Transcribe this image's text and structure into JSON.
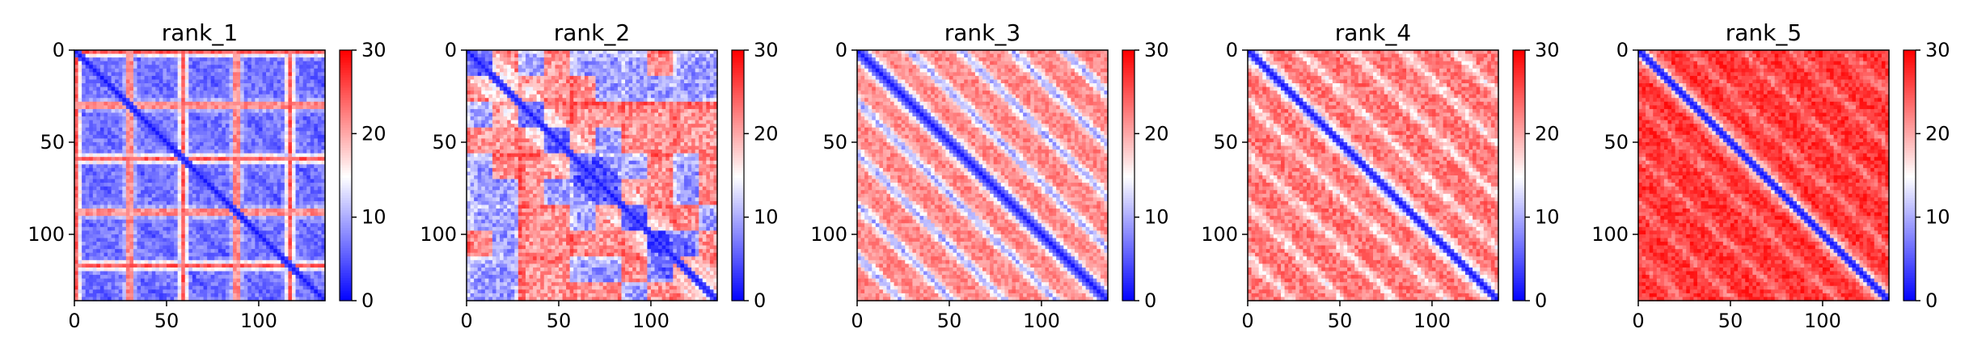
{
  "chart_data": [
    {
      "type": "heatmap",
      "title": "rank_1",
      "n": 136,
      "xticks": [
        0,
        50,
        100
      ],
      "yticks": [
        0,
        50,
        100
      ],
      "xlim": [
        0,
        136
      ],
      "ylim": [
        136,
        0
      ],
      "colorbar": {
        "min": 0,
        "max": 30,
        "ticks": [
          0,
          10,
          20,
          30
        ],
        "cmap": "bwr"
      },
      "pattern": {
        "diag_min": 1,
        "diag_width": 3,
        "base": 7,
        "block_period": 29,
        "block_peak": 25,
        "stripe_weight": 0.8,
        "band_weight": 0.0,
        "band_period": 28,
        "noise": 2.5,
        "mode": "stripes"
      }
    },
    {
      "type": "heatmap",
      "title": "rank_2",
      "n": 136,
      "xticks": [
        0,
        50,
        100
      ],
      "yticks": [
        0,
        50,
        100
      ],
      "xlim": [
        0,
        136
      ],
      "ylim": [
        136,
        0
      ],
      "colorbar": {
        "min": 0,
        "max": 30,
        "ticks": [
          0,
          10,
          20,
          30
        ],
        "cmap": "bwr"
      },
      "pattern": {
        "diag_min": 1,
        "diag_width": 4,
        "base": 17,
        "block_period": 28,
        "block_peak": 10,
        "stripe_weight": 0.5,
        "band_weight": 0.3,
        "band_period": 28,
        "noise": 3.5,
        "mode": "patchy"
      }
    },
    {
      "type": "heatmap",
      "title": "rank_3",
      "n": 136,
      "xticks": [
        0,
        50,
        100
      ],
      "yticks": [
        0,
        50,
        100
      ],
      "xlim": [
        0,
        136
      ],
      "ylim": [
        136,
        0
      ],
      "colorbar": {
        "min": 0,
        "max": 30,
        "ticks": [
          0,
          10,
          20,
          30
        ],
        "cmap": "bwr"
      },
      "pattern": {
        "diag_min": 1,
        "diag_width": 5,
        "base": 22,
        "block_period": 28,
        "block_peak": 12,
        "stripe_weight": 0.0,
        "band_weight": 1.0,
        "band_period": 28,
        "noise": 2.5,
        "mode": "bands"
      }
    },
    {
      "type": "heatmap",
      "title": "rank_4",
      "n": 136,
      "xticks": [
        0,
        50,
        100
      ],
      "yticks": [
        0,
        50,
        100
      ],
      "xlim": [
        0,
        136
      ],
      "ylim": [
        136,
        0
      ],
      "colorbar": {
        "min": 0,
        "max": 30,
        "ticks": [
          0,
          10,
          20,
          30
        ],
        "cmap": "bwr"
      },
      "pattern": {
        "diag_min": 1,
        "diag_width": 4,
        "base": 23,
        "block_period": 28,
        "block_peak": 12,
        "stripe_weight": 0.2,
        "band_weight": 0.55,
        "band_period": 28,
        "noise": 3.0,
        "mode": "bands"
      }
    },
    {
      "type": "heatmap",
      "title": "rank_5",
      "n": 136,
      "xticks": [
        0,
        50,
        100
      ],
      "yticks": [
        0,
        50,
        100
      ],
      "xlim": [
        0,
        136
      ],
      "ylim": [
        136,
        0
      ],
      "colorbar": {
        "min": 0,
        "max": 30,
        "ticks": [
          0,
          10,
          20,
          30
        ],
        "cmap": "bwr"
      },
      "pattern": {
        "diag_min": 1,
        "diag_width": 3,
        "base": 27,
        "block_period": 28,
        "block_peak": 12,
        "stripe_weight": 0.0,
        "band_weight": 0.35,
        "band_period": 28,
        "noise": 2.5,
        "mode": "bands"
      }
    }
  ]
}
